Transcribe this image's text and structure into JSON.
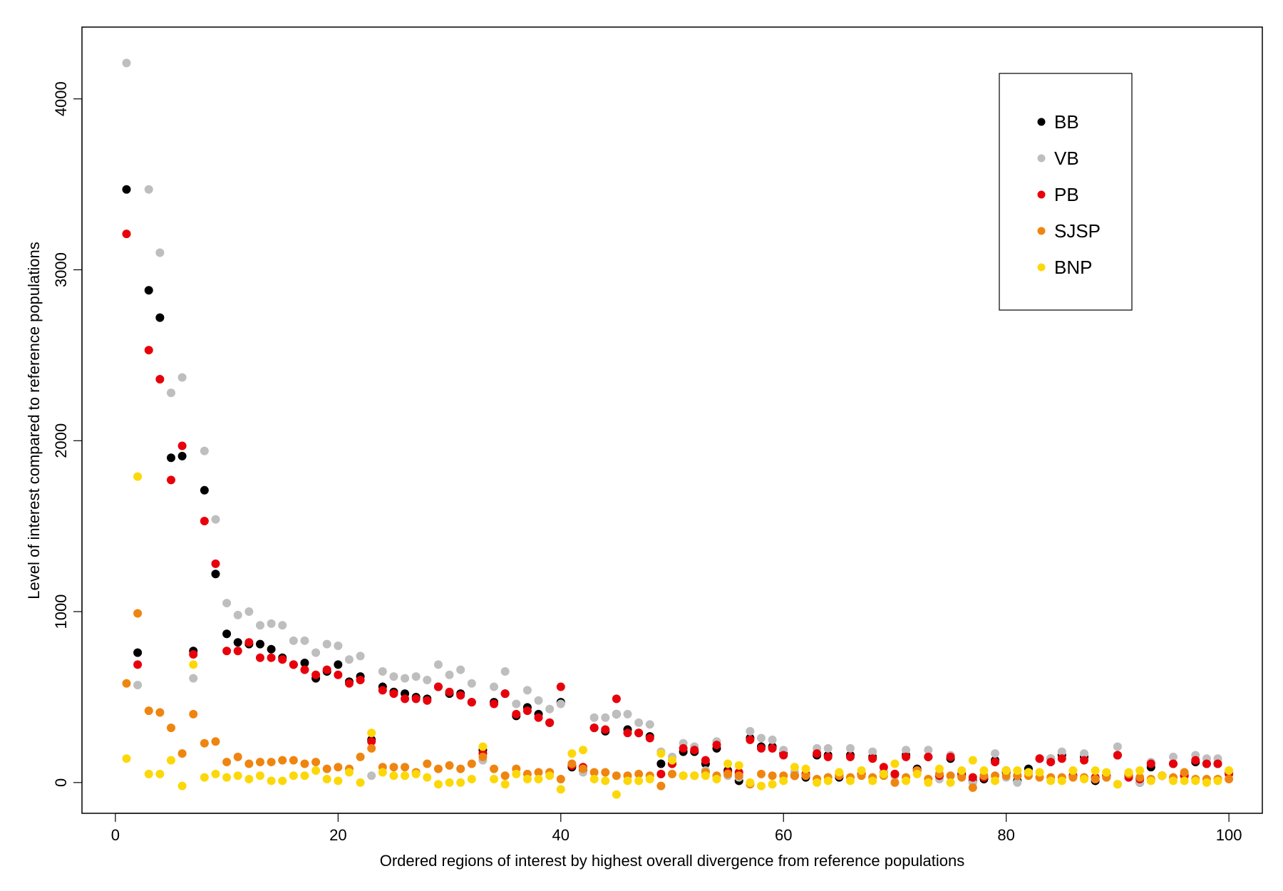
{
  "chart_data": {
    "type": "scatter",
    "xlabel": "Ordered regions of interest by highest overall divergence from reference populations",
    "ylabel": "Level of interest compared to reference populations",
    "xlim": [
      -3,
      103
    ],
    "ylim": [
      -180,
      4420
    ],
    "xticks": [
      0,
      20,
      40,
      60,
      80,
      100
    ],
    "yticks": [
      0,
      1000,
      2000,
      3000,
      4000
    ],
    "grid": false,
    "legend_position": "top-right",
    "series": [
      {
        "name": "BB",
        "color": "#000000",
        "x": [
          1,
          2,
          3,
          4,
          5,
          6,
          7,
          8,
          9,
          10,
          11,
          12,
          13,
          14,
          15,
          16,
          17,
          18,
          19,
          20,
          21,
          22,
          23,
          24,
          25,
          26,
          27,
          28,
          29,
          30,
          31,
          32,
          33,
          34,
          35,
          36,
          37,
          38,
          39,
          40,
          41,
          42,
          43,
          44,
          45,
          46,
          47,
          48,
          49,
          50,
          51,
          52,
          53,
          54,
          55,
          56,
          57,
          58,
          59,
          60,
          61,
          62,
          63,
          64,
          65,
          66,
          67,
          68,
          69,
          70,
          71,
          72,
          73,
          74,
          75,
          76,
          77,
          78,
          79,
          80,
          81,
          82,
          83,
          84,
          85,
          86,
          87,
          88,
          89,
          90,
          91,
          92,
          93,
          94,
          95,
          96,
          97,
          98,
          99,
          100
        ],
        "y": [
          3470,
          760,
          2880,
          2720,
          1900,
          1910,
          770,
          1710,
          1220,
          870,
          820,
          810,
          810,
          780,
          730,
          690,
          700,
          610,
          650,
          690,
          590,
          620,
          250,
          560,
          530,
          520,
          500,
          490,
          560,
          520,
          520,
          470,
          190,
          470,
          520,
          390,
          440,
          400,
          350,
          470,
          90,
          70,
          320,
          300,
          400,
          310,
          290,
          270,
          110,
          110,
          180,
          180,
          110,
          200,
          70,
          10,
          260,
          210,
          210,
          170,
          40,
          30,
          160,
          160,
          30,
          160,
          50,
          150,
          60,
          50,
          160,
          80,
          150,
          40,
          140,
          50,
          10,
          20,
          130,
          60,
          10,
          80,
          140,
          140,
          160,
          40,
          150,
          10,
          40,
          160,
          40,
          0,
          90,
          40,
          110,
          40,
          120,
          110,
          110,
          60
        ]
      },
      {
        "name": "VB",
        "color": "#bebebe",
        "x": [
          1,
          2,
          3,
          4,
          5,
          6,
          7,
          8,
          9,
          10,
          11,
          12,
          13,
          14,
          15,
          16,
          17,
          18,
          19,
          20,
          21,
          22,
          23,
          24,
          25,
          26,
          27,
          28,
          29,
          30,
          31,
          32,
          33,
          34,
          35,
          36,
          37,
          38,
          39,
          40,
          41,
          42,
          43,
          44,
          45,
          46,
          47,
          48,
          49,
          50,
          51,
          52,
          53,
          54,
          55,
          56,
          57,
          58,
          59,
          60,
          61,
          62,
          63,
          64,
          65,
          66,
          67,
          68,
          69,
          70,
          71,
          72,
          73,
          74,
          75,
          76,
          77,
          78,
          79,
          80,
          81,
          82,
          83,
          84,
          85,
          86,
          87,
          88,
          89,
          90,
          91,
          92,
          93,
          94,
          95,
          96,
          97,
          98,
          99,
          100
        ],
        "y": [
          4210,
          570,
          3470,
          3100,
          2280,
          2370,
          610,
          1940,
          1540,
          1050,
          980,
          1000,
          920,
          930,
          920,
          830,
          830,
          760,
          810,
          800,
          720,
          740,
          40,
          650,
          620,
          610,
          620,
          600,
          690,
          630,
          660,
          580,
          130,
          560,
          650,
          460,
          540,
          480,
          430,
          460,
          100,
          60,
          380,
          380,
          400,
          400,
          350,
          340,
          180,
          150,
          230,
          210,
          70,
          240,
          40,
          30,
          300,
          260,
          250,
          190,
          60,
          50,
          200,
          200,
          50,
          200,
          50,
          180,
          60,
          40,
          190,
          70,
          190,
          20,
          160,
          40,
          0,
          40,
          170,
          30,
          0,
          60,
          140,
          140,
          180,
          40,
          170,
          20,
          30,
          210,
          30,
          0,
          120,
          40,
          150,
          50,
          160,
          140,
          140,
          60
        ]
      },
      {
        "name": "PB",
        "color": "#e8000b",
        "x": [
          1,
          2,
          3,
          4,
          5,
          6,
          7,
          8,
          9,
          10,
          11,
          12,
          13,
          14,
          15,
          16,
          17,
          18,
          19,
          20,
          21,
          22,
          23,
          24,
          25,
          26,
          27,
          28,
          29,
          30,
          31,
          32,
          33,
          34,
          35,
          36,
          37,
          38,
          39,
          40,
          41,
          42,
          43,
          44,
          45,
          46,
          47,
          48,
          49,
          50,
          51,
          52,
          53,
          54,
          55,
          56,
          57,
          58,
          59,
          60,
          61,
          62,
          63,
          64,
          65,
          66,
          67,
          68,
          69,
          70,
          71,
          72,
          73,
          74,
          75,
          76,
          77,
          78,
          79,
          80,
          81,
          82,
          83,
          84,
          85,
          86,
          87,
          88,
          89,
          90,
          91,
          92,
          93,
          94,
          95,
          96,
          97,
          98,
          99,
          100
        ],
        "y": [
          3210,
          690,
          2530,
          2360,
          1770,
          1970,
          750,
          1530,
          1280,
          770,
          770,
          820,
          730,
          730,
          720,
          690,
          660,
          630,
          660,
          630,
          580,
          600,
          240,
          540,
          520,
          490,
          490,
          480,
          560,
          530,
          510,
          470,
          170,
          460,
          520,
          400,
          420,
          380,
          350,
          560,
          100,
          90,
          320,
          310,
          490,
          290,
          290,
          260,
          50,
          110,
          200,
          190,
          130,
          220,
          60,
          60,
          250,
          200,
          200,
          160,
          40,
          50,
          170,
          150,
          40,
          150,
          50,
          140,
          90,
          50,
          150,
          70,
          150,
          40,
          150,
          40,
          30,
          30,
          120,
          70,
          40,
          60,
          140,
          120,
          140,
          40,
          130,
          30,
          40,
          160,
          30,
          20,
          110,
          40,
          110,
          40,
          130,
          110,
          110,
          50
        ]
      },
      {
        "name": "SJSP",
        "color": "#ef8511",
        "x": [
          1,
          2,
          3,
          4,
          5,
          6,
          7,
          8,
          9,
          10,
          11,
          12,
          13,
          14,
          15,
          16,
          17,
          18,
          19,
          20,
          21,
          22,
          23,
          24,
          25,
          26,
          27,
          28,
          29,
          30,
          31,
          32,
          33,
          34,
          35,
          36,
          37,
          38,
          39,
          40,
          41,
          42,
          43,
          44,
          45,
          46,
          47,
          48,
          49,
          50,
          51,
          52,
          53,
          54,
          55,
          56,
          57,
          58,
          59,
          60,
          61,
          62,
          63,
          64,
          65,
          66,
          67,
          68,
          69,
          70,
          71,
          72,
          73,
          74,
          75,
          76,
          77,
          78,
          79,
          80,
          81,
          82,
          83,
          84,
          85,
          86,
          87,
          88,
          89,
          90,
          91,
          92,
          93,
          94,
          95,
          96,
          97,
          98,
          99,
          100
        ],
        "y": [
          580,
          990,
          420,
          410,
          320,
          170,
          400,
          230,
          240,
          120,
          150,
          110,
          120,
          120,
          130,
          130,
          110,
          120,
          80,
          90,
          80,
          150,
          200,
          90,
          90,
          90,
          60,
          110,
          80,
          100,
          80,
          110,
          150,
          80,
          40,
          80,
          50,
          60,
          60,
          20,
          110,
          80,
          60,
          60,
          40,
          40,
          50,
          40,
          -20,
          50,
          40,
          40,
          60,
          40,
          50,
          40,
          -10,
          50,
          40,
          40,
          40,
          40,
          20,
          30,
          40,
          30,
          40,
          30,
          40,
          0,
          30,
          70,
          20,
          50,
          40,
          30,
          -30,
          40,
          40,
          40,
          40,
          40,
          30,
          30,
          30,
          30,
          30,
          20,
          30,
          -10,
          50,
          30,
          20,
          40,
          30,
          60,
          20,
          20,
          20,
          20
        ]
      },
      {
        "name": "BNP",
        "color": "#fcd80a",
        "x": [
          1,
          2,
          3,
          4,
          5,
          6,
          7,
          8,
          9,
          10,
          11,
          12,
          13,
          14,
          15,
          16,
          17,
          18,
          19,
          20,
          21,
          22,
          23,
          24,
          25,
          26,
          27,
          28,
          29,
          30,
          31,
          32,
          33,
          34,
          35,
          36,
          37,
          38,
          39,
          40,
          41,
          42,
          43,
          44,
          45,
          46,
          47,
          48,
          49,
          50,
          51,
          52,
          53,
          54,
          55,
          56,
          57,
          58,
          59,
          60,
          61,
          62,
          63,
          64,
          65,
          66,
          67,
          68,
          69,
          70,
          71,
          72,
          73,
          74,
          75,
          76,
          77,
          78,
          79,
          80,
          81,
          82,
          83,
          84,
          85,
          86,
          87,
          88,
          89,
          90,
          91,
          92,
          93,
          94,
          95,
          96,
          97,
          98,
          99,
          100
        ],
        "y": [
          140,
          1790,
          50,
          50,
          130,
          -20,
          690,
          30,
          50,
          30,
          40,
          20,
          40,
          10,
          10,
          40,
          40,
          70,
          20,
          10,
          60,
          0,
          290,
          60,
          40,
          40,
          50,
          30,
          -10,
          0,
          0,
          20,
          210,
          20,
          -10,
          50,
          20,
          20,
          40,
          -40,
          170,
          190,
          20,
          10,
          -70,
          10,
          10,
          20,
          170,
          130,
          40,
          40,
          40,
          20,
          110,
          100,
          0,
          -20,
          -10,
          10,
          90,
          80,
          0,
          10,
          60,
          10,
          70,
          10,
          50,
          110,
          10,
          50,
          0,
          80,
          0,
          70,
          130,
          70,
          10,
          70,
          70,
          60,
          60,
          10,
          10,
          70,
          20,
          70,
          60,
          -10,
          60,
          70,
          10,
          40,
          10,
          10,
          10,
          0,
          10,
          70
        ]
      }
    ]
  }
}
